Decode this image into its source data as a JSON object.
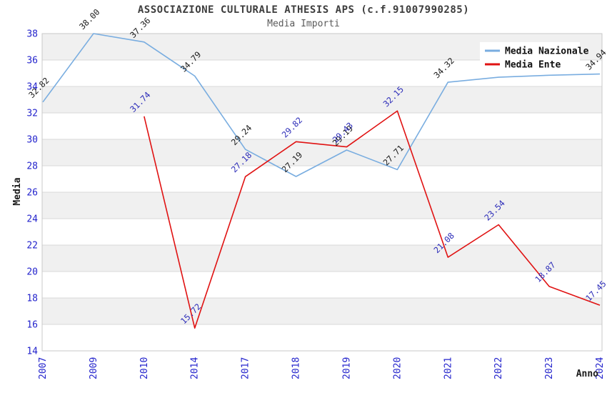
{
  "chart_data": {
    "type": "line",
    "title": "ASSOCIAZIONE CULTURALE ATHESIS APS (c.f.91007990285)",
    "subtitle": "Media Importi",
    "xlabel": "Anno",
    "ylabel": "Media",
    "categories": [
      "2007",
      "2009",
      "2010",
      "2014",
      "2017",
      "2018",
      "2019",
      "2020",
      "2021",
      "2022",
      "2023",
      "2024"
    ],
    "ylim": [
      14,
      38
    ],
    "ytick_step": 2,
    "grid": true,
    "band_color": "#f0f0f0",
    "gridline_color": "#d9d9d9",
    "plot_border_color": "#c9c9c9",
    "axis_tick_color": "#2323cc",
    "legend_position": "top-right",
    "series": [
      {
        "name": "Media Nazionale",
        "color": "#79ade0",
        "label_color": "#1a1a1a",
        "values": [
          32.82,
          38.0,
          37.36,
          34.79,
          29.24,
          27.19,
          29.19,
          27.71,
          34.32,
          34.7,
          34.85,
          34.94
        ],
        "labels": [
          "32.82",
          "38.00",
          "37.36",
          "34.79",
          "29.24",
          "27.19",
          "29.19",
          "27.71",
          "34.32",
          null,
          null,
          "34.94"
        ]
      },
      {
        "name": "Media Ente",
        "color": "#e01212",
        "label_color": "#2a2ab8",
        "values": [
          null,
          null,
          31.74,
          15.72,
          27.18,
          29.82,
          29.43,
          32.15,
          21.08,
          23.54,
          18.87,
          17.45
        ],
        "labels": [
          null,
          null,
          "31.74",
          "15.72",
          "27.18",
          "29.82",
          "29.43",
          "32.15",
          "21.08",
          "23.54",
          "18.87",
          "17.45"
        ]
      }
    ]
  }
}
